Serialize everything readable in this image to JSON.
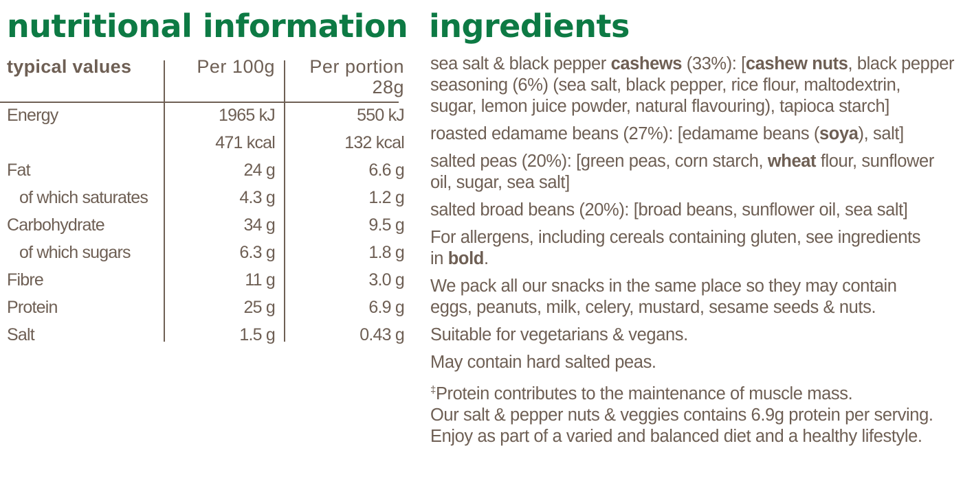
{
  "nutrition": {
    "heading": "nutritional information",
    "header": {
      "typical": "typical values",
      "per100": "Per 100g",
      "portion_line1": "Per portion",
      "portion_line2": "28g"
    },
    "rows": [
      {
        "label": "Energy",
        "per100": "1965 kJ",
        "portion": "550 kJ",
        "indent": false
      },
      {
        "label": "",
        "per100": "471 kcal",
        "portion": "132 kcal",
        "indent": false
      },
      {
        "label": "Fat",
        "per100": "24 g",
        "portion": "6.6 g",
        "indent": false
      },
      {
        "label": "of which saturates",
        "per100": "4.3 g",
        "portion": "1.2 g",
        "indent": true
      },
      {
        "label": "Carbohydrate",
        "per100": "34 g",
        "portion": "9.5 g",
        "indent": false
      },
      {
        "label": "of which sugars",
        "per100": "6.3 g",
        "portion": "1.8 g",
        "indent": true
      },
      {
        "label": "Fibre",
        "per100": "11 g",
        "portion": "3.0 g",
        "indent": false
      },
      {
        "label": "Protein",
        "per100": "25 g",
        "portion": "6.9 g",
        "indent": false
      },
      {
        "label": "Salt",
        "per100": "1.5 g",
        "portion": "0.43 g",
        "indent": false
      }
    ]
  },
  "ingredients": {
    "heading": "ingredients",
    "p1": {
      "a": "sea salt & black pepper ",
      "b": "cashews",
      "c": " (33%): [",
      "d": "cashew nuts",
      "e": ", black pepper",
      "line2": "seasoning (6%) (sea salt, black pepper, rice flour, maltodextrin,",
      "line3": "sugar, lemon juice powder, natural flavouring), tapioca starch]"
    },
    "p2": {
      "a": "roasted edamame beans (27%): [edamame beans (",
      "b": "soya",
      "c": "), salt]"
    },
    "p3": {
      "a": "salted peas (20%): [green peas, corn starch, ",
      "b": "wheat",
      "c": " flour, sunflower",
      "line2": "oil, sugar, sea salt]"
    },
    "p4": "salted broad beans (20%): [broad beans, sunflower oil, sea salt]",
    "p5": {
      "line1": "For allergens, including cereals containing gluten, see ingredients",
      "a": "in ",
      "b": "bold",
      "c": "."
    },
    "p6": {
      "line1": "We pack all our snacks in the same place so they may contain",
      "line2": "eggs, peanuts, milk, celery, mustard, sesame seeds & nuts."
    },
    "p7": "Suitable for vegetarians & vegans.",
    "p8": "May contain hard salted peas.",
    "p9": {
      "dagger": "‡",
      "line1": "Protein contributes to the maintenance of muscle mass.",
      "line2": "Our salt & pepper nuts & veggies contains 6.9g protein per serving.",
      "line3": "Enjoy as part of a varied and balanced diet and a healthy lifestyle."
    }
  }
}
